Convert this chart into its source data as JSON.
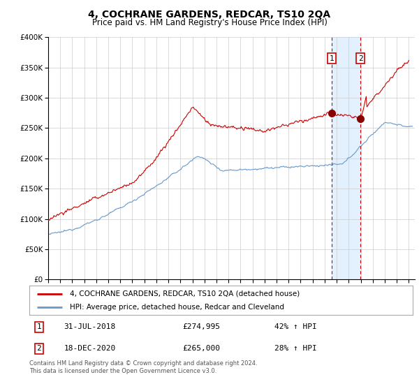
{
  "title": "4, COCHRANE GARDENS, REDCAR, TS10 2QA",
  "subtitle": "Price paid vs. HM Land Registry's House Price Index (HPI)",
  "legend_line1": "4, COCHRANE GARDENS, REDCAR, TS10 2QA (detached house)",
  "legend_line2": "HPI: Average price, detached house, Redcar and Cleveland",
  "point1_date": "31-JUL-2018",
  "point1_price": "£274,995",
  "point1_hpi": "42% ↑ HPI",
  "point1_year": 2018.58,
  "point1_value": 274995,
  "point2_date": "18-DEC-2020",
  "point2_price": "£265,000",
  "point2_hpi": "28% ↑ HPI",
  "point2_year": 2020.97,
  "point2_value": 265000,
  "footer": "Contains HM Land Registry data © Crown copyright and database right 2024.\nThis data is licensed under the Open Government Licence v3.0.",
  "red_color": "#cc0000",
  "blue_color": "#6699cc",
  "background_color": "#ffffff",
  "grid_color": "#cccccc",
  "highlight_bg": "#ddeeff",
  "ylim": [
    0,
    400000
  ],
  "xlim_start": 1995.0,
  "xlim_end": 2025.5
}
